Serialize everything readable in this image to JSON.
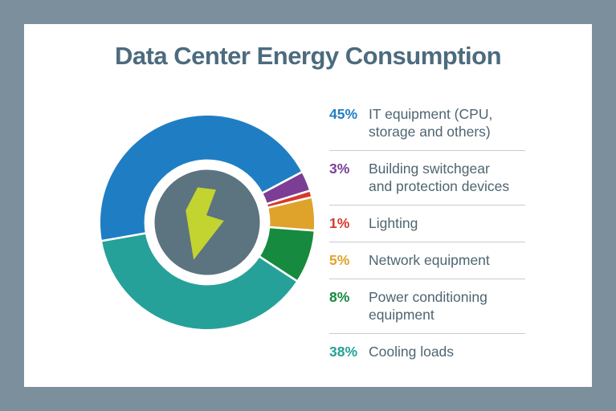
{
  "frame": {
    "border_color": "#7B909C",
    "card_color": "#FFFFFF"
  },
  "title": {
    "text": "Data Center Energy Consumption",
    "color": "#4C6B7E"
  },
  "chart_data": {
    "type": "pie",
    "donut": true,
    "title": "Data Center Energy Consumption",
    "rotation_deg": 260,
    "direction": "clockwise",
    "legend_position": "right",
    "slices": [
      {
        "label": "IT equipment (CPU, storage and others)",
        "value": 45,
        "color": "#1F7EC3"
      },
      {
        "label": "Building switchgear and protection devices",
        "value": 3,
        "color": "#7B3E94"
      },
      {
        "label": "Lighting",
        "value": 1,
        "color": "#D6392B"
      },
      {
        "label": "Network equipment",
        "value": 5,
        "color": "#DFA32B"
      },
      {
        "label": "Power conditioning equipment",
        "value": 8,
        "color": "#168A3E"
      },
      {
        "label": "Cooling loads",
        "value": 38,
        "color": "#26A199"
      }
    ],
    "center_icon": "lightning-bolt-icon",
    "center_circle_color": "#5C7380",
    "bolt_color": "#C3D32F",
    "slice_gap_color": "#FFFFFF"
  },
  "legend": {
    "items": [
      {
        "percent": "45%",
        "color": "#1F7EC3",
        "text": "IT equipment (CPU,\nstorage and others)"
      },
      {
        "percent": "3%",
        "color": "#7B3E94",
        "text": "Building switchgear\nand protection devices"
      },
      {
        "percent": "1%",
        "color": "#D6392B",
        "text": "Lighting"
      },
      {
        "percent": "5%",
        "color": "#DFA32B",
        "text": "Network equipment"
      },
      {
        "percent": "8%",
        "color": "#168A3E",
        "text": "Power conditioning\nequipment"
      },
      {
        "percent": "38%",
        "color": "#26A199",
        "text": "Cooling loads"
      }
    ]
  }
}
